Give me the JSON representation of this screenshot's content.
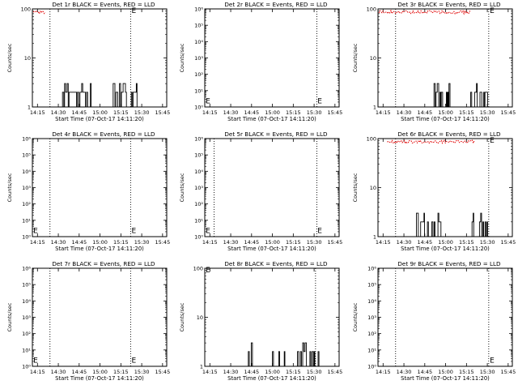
{
  "chart_data": [
    {
      "type": "line",
      "title": "Det 1r BLACK = Events, RED = LLD",
      "xlabel": "Start Time (07-Oct-17 14:11:20)",
      "ylabel": "Counts/sec",
      "yscale": "log",
      "ylim": [
        1,
        100
      ],
      "yticks": [
        {
          "v": 1,
          "t": "1"
        },
        {
          "v": 10,
          "t": "10"
        },
        {
          "v": 100,
          "t": "100"
        }
      ],
      "xticks": [
        "14:15",
        "14:30",
        "14:45",
        "15:00",
        "15:15",
        "15:30",
        "15:45"
      ],
      "xlim": [
        14.1889,
        15.8
      ],
      "vlines": [
        14.4,
        15.367
      ],
      "markers": [
        {
          "x": 15.378,
          "y": 100,
          "text": "E"
        }
      ],
      "red": {
        "x0": 14.2,
        "x1": 14.35,
        "y": 100
      },
      "black": {
        "bursts": [
          [
            14.55,
            14.9,
            "a"
          ],
          [
            15.15,
            15.45,
            "b"
          ]
        ]
      }
    },
    {
      "type": "line",
      "title": "Det 2r BLACK = Events, RED = LLD",
      "xlabel": "Start Time (07-Oct-17 14:11:20)",
      "ylabel": "Counts/sec",
      "yscale": "log",
      "ylim": [
        1,
        1000000
      ],
      "yticks": [
        {
          "v": 1,
          "t": "10⁰"
        },
        {
          "v": 10,
          "t": "10¹"
        },
        {
          "v": 100,
          "t": "10²"
        },
        {
          "v": 1000,
          "t": "10³"
        },
        {
          "v": 10000,
          "t": "10⁴"
        },
        {
          "v": 100000,
          "t": "10⁵"
        },
        {
          "v": 1000000,
          "t": "10⁶"
        }
      ],
      "xticks": [
        "14:15",
        "14:30",
        "14:45",
        "15:00",
        "15:15",
        "15:30",
        "15:45"
      ],
      "xlim": [
        14.1889,
        15.8
      ],
      "vlines": [
        15.533
      ],
      "markers": [
        {
          "x": 14.2,
          "y": 3,
          "text": "E"
        },
        {
          "x": 15.54,
          "y": 3,
          "text": "E"
        }
      ],
      "red": null,
      "black": {
        "bursts": []
      }
    },
    {
      "type": "line",
      "title": "Det 3r BLACK = Events, RED = LLD",
      "xlabel": "Start Time (07-Oct-17 14:11:20)",
      "ylabel": "Counts/sec",
      "yscale": "log",
      "ylim": [
        1,
        100
      ],
      "yticks": [
        {
          "v": 1,
          "t": "1"
        },
        {
          "v": 10,
          "t": "10"
        },
        {
          "v": 100,
          "t": "100"
        }
      ],
      "xticks": [
        "14:15",
        "14:30",
        "14:45",
        "15:00",
        "15:15",
        "15:30",
        "15:45"
      ],
      "xlim": [
        14.1889,
        15.8
      ],
      "vlines": [
        14.4,
        15.517
      ],
      "markers": [
        {
          "x": 15.53,
          "y": 100,
          "text": "E"
        }
      ],
      "red": {
        "x0": 14.2,
        "x1": 15.3,
        "y": 100
      },
      "black": {
        "bursts": [
          [
            14.85,
            15.05,
            "c"
          ],
          [
            15.3,
            15.5,
            "d"
          ]
        ]
      }
    },
    {
      "type": "line",
      "title": "Det 4r BLACK = Events, RED = LLD",
      "xlabel": "Start Time (07-Oct-17 14:11:20)",
      "ylabel": "Counts/sec",
      "yscale": "log",
      "ylim": [
        1,
        1000000
      ],
      "yticks": [
        {
          "v": 1,
          "t": "10⁰"
        },
        {
          "v": 10,
          "t": "10¹"
        },
        {
          "v": 100,
          "t": "10²"
        },
        {
          "v": 1000,
          "t": "10³"
        },
        {
          "v": 10000,
          "t": "10⁴"
        },
        {
          "v": 100000,
          "t": "10⁵"
        },
        {
          "v": 1000000,
          "t": "10⁶"
        }
      ],
      "xticks": [
        "14:15",
        "14:30",
        "14:45",
        "15:00",
        "15:15",
        "15:30",
        "15:45"
      ],
      "xlim": [
        14.1889,
        15.8
      ],
      "vlines": [
        14.4,
        15.367
      ],
      "markers": [
        {
          "x": 14.2,
          "y": 3,
          "text": "E"
        },
        {
          "x": 15.378,
          "y": 3,
          "text": "E"
        }
      ],
      "red": null,
      "black": {
        "bursts": []
      }
    },
    {
      "type": "line",
      "title": "Det 5r BLACK = Events, RED = LLD",
      "xlabel": "Start Time (07-Oct-17 14:11:20)",
      "ylabel": "Counts/sec",
      "yscale": "log",
      "ylim": [
        1,
        1000000
      ],
      "yticks": [
        {
          "v": 1,
          "t": "10⁰"
        },
        {
          "v": 10,
          "t": "10¹"
        },
        {
          "v": 100,
          "t": "10²"
        },
        {
          "v": 1000,
          "t": "10³"
        },
        {
          "v": 10000,
          "t": "10⁴"
        },
        {
          "v": 100000,
          "t": "10⁵"
        },
        {
          "v": 1000000,
          "t": "10⁶"
        }
      ],
      "xticks": [
        "14:15",
        "14:30",
        "14:45",
        "15:00",
        "15:15",
        "15:30",
        "15:45"
      ],
      "xlim": [
        14.1889,
        15.8
      ],
      "vlines": [
        14.3,
        15.533
      ],
      "markers": [
        {
          "x": 14.2,
          "y": 3,
          "text": "E"
        },
        {
          "x": 15.54,
          "y": 3,
          "text": "E"
        }
      ],
      "red": null,
      "black": {
        "bursts": []
      }
    },
    {
      "type": "line",
      "title": "Det 6r BLACK = Events, RED = LLD",
      "xlabel": "Start Time (07-Oct-17 14:11:20)",
      "ylabel": "Counts/sec",
      "yscale": "log",
      "ylim": [
        1,
        100
      ],
      "yticks": [
        {
          "v": 1,
          "t": "1"
        },
        {
          "v": 10,
          "t": "10"
        },
        {
          "v": 100,
          "t": "100"
        }
      ],
      "xticks": [
        "14:15",
        "14:30",
        "14:45",
        "15:00",
        "15:15",
        "15:30",
        "15:45"
      ],
      "xlim": [
        14.1889,
        15.8
      ],
      "vlines": [
        14.4,
        15.517
      ],
      "markers": [
        {
          "x": 15.53,
          "y": 100,
          "text": "E"
        }
      ],
      "red": {
        "x0": 14.3,
        "x1": 15.35,
        "y": 100
      },
      "black": {
        "bursts": [
          [
            14.65,
            14.95,
            "e"
          ],
          [
            15.3,
            15.5,
            "f"
          ]
        ]
      }
    },
    {
      "type": "line",
      "title": "Det 7r BLACK = Events, RED = LLD",
      "xlabel": "Start Time (07-Oct-17 14:11:20)",
      "ylabel": "Counts/sec",
      "yscale": "log",
      "ylim": [
        1,
        1000000
      ],
      "yticks": [
        {
          "v": 1,
          "t": "10⁰"
        },
        {
          "v": 10,
          "t": "10¹"
        },
        {
          "v": 100,
          "t": "10²"
        },
        {
          "v": 1000,
          "t": "10³"
        },
        {
          "v": 10000,
          "t": "10⁴"
        },
        {
          "v": 100000,
          "t": "10⁵"
        },
        {
          "v": 1000000,
          "t": "10⁶"
        }
      ],
      "xticks": [
        "14:15",
        "14:30",
        "14:45",
        "15:00",
        "15:15",
        "15:30",
        "15:45"
      ],
      "xlim": [
        14.1889,
        15.8
      ],
      "vlines": [
        14.4,
        15.367
      ],
      "markers": [
        {
          "x": 14.2,
          "y": 3,
          "text": "E"
        },
        {
          "x": 15.378,
          "y": 3,
          "text": "E"
        }
      ],
      "red": null,
      "black": {
        "bursts": []
      }
    },
    {
      "type": "line",
      "title": "Det 8r BLACK = Events, RED = LLD",
      "xlabel": "Start Time (07-Oct-17 14:11:20)",
      "ylabel": "Counts/sec",
      "yscale": "log",
      "ylim": [
        1,
        100
      ],
      "yticks": [
        {
          "v": 1,
          "t": "1"
        },
        {
          "v": 10,
          "t": "10"
        },
        {
          "v": 100,
          "t": "100"
        }
      ],
      "xticks": [
        "14:15",
        "14:30",
        "14:45",
        "15:00",
        "15:15",
        "15:30",
        "15:45"
      ],
      "xlim": [
        14.1889,
        15.8
      ],
      "vlines": [
        15.517
      ],
      "markers": [
        {
          "x": 14.2,
          "y": 100,
          "text": "E"
        }
      ],
      "red": null,
      "black": {
        "bursts": [
          [
            14.7,
            14.75,
            "g"
          ],
          [
            15.0,
            15.15,
            "h"
          ],
          [
            15.3,
            15.55,
            "i"
          ]
        ]
      }
    },
    {
      "type": "line",
      "title": "Det 9r BLACK = Events, RED = LLD",
      "xlabel": "Start Time (07-Oct-17 14:11:20)",
      "ylabel": "Counts/sec",
      "yscale": "log",
      "ylim": [
        1,
        1000000
      ],
      "yticks": [
        {
          "v": 1,
          "t": "10⁰"
        },
        {
          "v": 10,
          "t": "10¹"
        },
        {
          "v": 100,
          "t": "10²"
        },
        {
          "v": 1000,
          "t": "10³"
        },
        {
          "v": 10000,
          "t": "10⁴"
        },
        {
          "v": 100000,
          "t": "10⁵"
        },
        {
          "v": 1000000,
          "t": "10⁶"
        }
      ],
      "xticks": [
        "14:15",
        "14:30",
        "14:45",
        "15:00",
        "15:15",
        "15:30",
        "15:45"
      ],
      "xlim": [
        14.1889,
        15.8
      ],
      "vlines": [
        14.4,
        15.517
      ],
      "markers": [
        {
          "x": 15.53,
          "y": 3,
          "text": "E"
        }
      ],
      "red": null,
      "black": {
        "bursts": []
      }
    }
  ]
}
